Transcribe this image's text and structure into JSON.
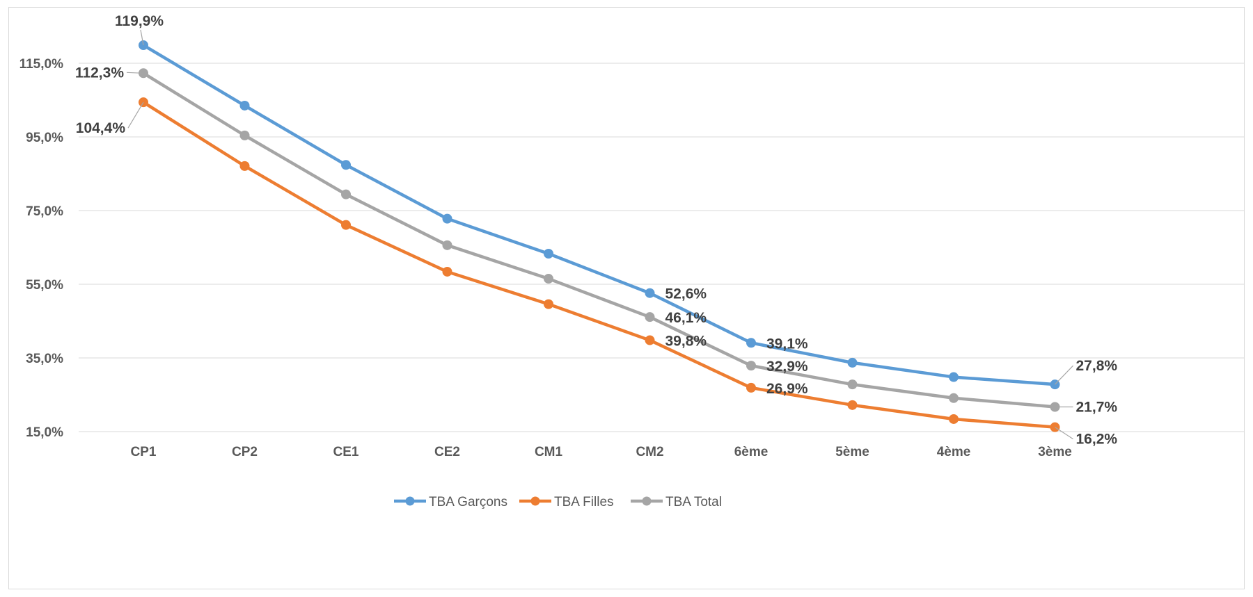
{
  "chart_data": {
    "type": "line",
    "categories": [
      "CP1",
      "CP2",
      "CE1",
      "CE2",
      "CM1",
      "CM2",
      "6ème",
      "5ème",
      "4ème",
      "3ème"
    ],
    "series": [
      {
        "name": "TBA Garçons",
        "color": "#5b9bd5",
        "values": [
          119.9,
          103.5,
          87.4,
          72.8,
          63.3,
          52.6,
          39.1,
          33.7,
          29.8,
          27.8
        ],
        "labels": {
          "0": "119,9%",
          "5": "52,6%",
          "6": "39,1%",
          "9": "27,8%"
        }
      },
      {
        "name": "TBA Filles",
        "color": "#ed7d31",
        "values": [
          104.4,
          87.1,
          71.1,
          58.4,
          49.6,
          39.8,
          26.9,
          22.2,
          18.4,
          16.2
        ],
        "labels": {
          "0": "104,4%",
          "5": "39,8%",
          "6": "26,9%",
          "9": "16,2%"
        }
      },
      {
        "name": "TBA Total",
        "color": "#a5a5a5",
        "values": [
          112.3,
          95.4,
          79.4,
          65.6,
          56.5,
          46.1,
          32.9,
          27.8,
          24.1,
          21.7
        ],
        "labels": {
          "0": "112,3%",
          "5": "46,1%",
          "6": "32,9%",
          "9": "21,7%"
        }
      }
    ],
    "yticks": [
      "15,0%",
      "35,0%",
      "55,0%",
      "75,0%",
      "95,0%",
      "115,0%"
    ],
    "ytick_values": [
      15,
      35,
      55,
      75,
      95,
      115
    ],
    "ylim": [
      15,
      125
    ],
    "grid": true,
    "legend_position": "bottom"
  }
}
